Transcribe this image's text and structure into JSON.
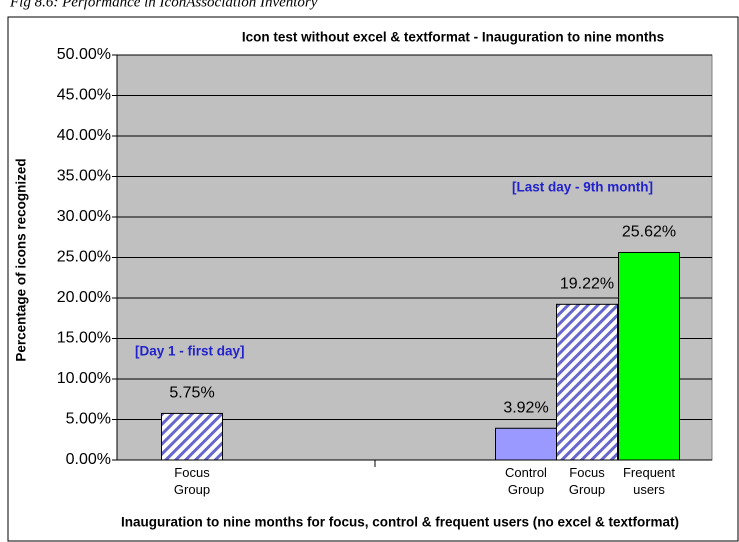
{
  "caption": "Fig 8.6: Performance in IconAssociation Inventory",
  "chart_data": {
    "type": "bar",
    "title": "Icon test without excel & textformat - Inauguration to nine months",
    "x_label": "Inauguration to nine months for focus, control & frequent users (no excel & textformat)",
    "y_label": "Percentage of icons recognized",
    "categories": [
      "Focus Group",
      "Control Group",
      "Focus Group",
      "Frequent users"
    ],
    "values": [
      5.75,
      3.92,
      19.22,
      25.62
    ],
    "value_labels": [
      "5.75%",
      "3.92%",
      "19.22%",
      "25.62%"
    ],
    "colors": [
      "#6666cc",
      "#9999ff",
      "#6666cc",
      "#00ff00"
    ],
    "patterns": [
      "hatch",
      "solid",
      "hatch",
      "solid"
    ],
    "annotations": [
      "[Day 1 - first day]",
      "[Last day - 9th month]"
    ],
    "ylim": [
      0,
      50
    ],
    "yticks": [
      {
        "value": 0,
        "label": "0.00%"
      },
      {
        "value": 5,
        "label": "5.00%"
      },
      {
        "value": 10,
        "label": "10.00%"
      },
      {
        "value": 15,
        "label": "15.00%"
      },
      {
        "value": 20,
        "label": "20.00%"
      },
      {
        "value": 25,
        "label": "25.00%"
      },
      {
        "value": 30,
        "label": "30.00%"
      },
      {
        "value": 35,
        "label": "35.00%"
      },
      {
        "value": 40,
        "label": "40.00%"
      },
      {
        "value": 45,
        "label": "45.00%"
      },
      {
        "value": 50,
        "label": "50.00%"
      }
    ],
    "grid": true
  }
}
